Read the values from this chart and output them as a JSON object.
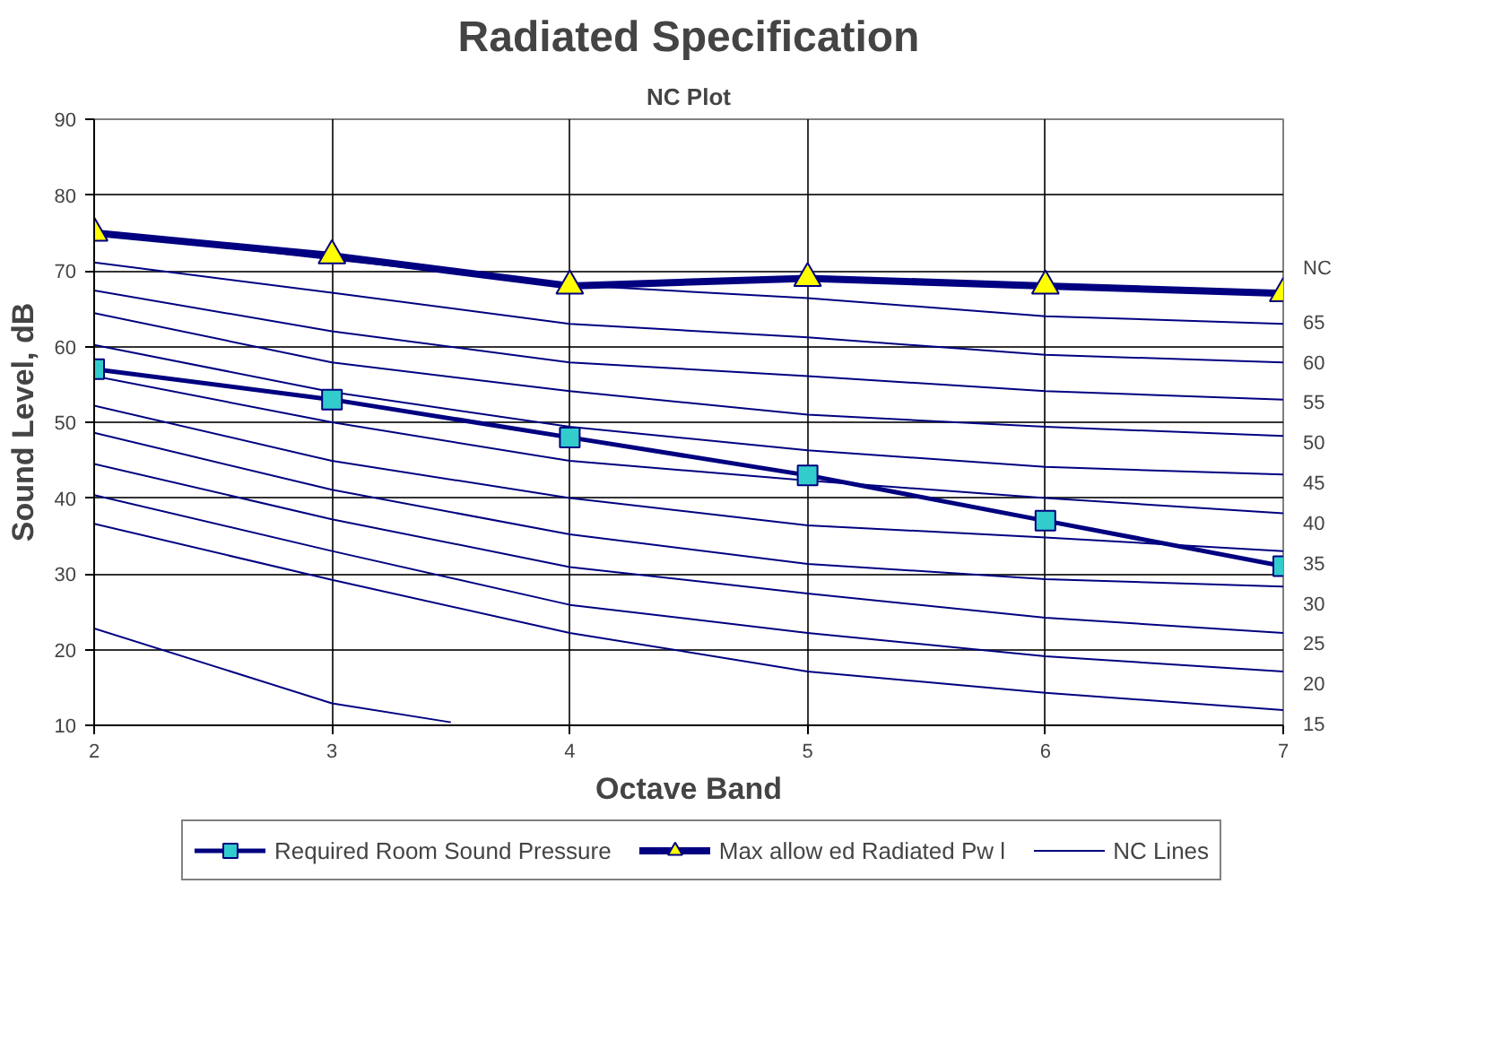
{
  "chart_data": {
    "type": "line",
    "title": "Radiated Specification",
    "subtitle": "NC Plot",
    "xlabel": "Octave Band",
    "ylabel": "Sound Level, dB",
    "y2label": "NC",
    "x": [
      2,
      3,
      4,
      5,
      6,
      7
    ],
    "xlim": [
      2,
      7
    ],
    "xticks": [
      2,
      3,
      4,
      5,
      6,
      7
    ],
    "ylim": [
      10,
      90
    ],
    "yticks": [
      10,
      20,
      30,
      40,
      50,
      60,
      70,
      80,
      90
    ],
    "y2lim": [
      15,
      90.4
    ],
    "y2ticks": [
      15,
      20,
      25,
      30,
      35,
      40,
      45,
      50,
      55,
      60,
      65
    ],
    "grid": true,
    "legend": "bottom",
    "line_style": "solid",
    "series": [
      {
        "name": "NC Lines",
        "color": "#000080",
        "marker": "none",
        "values": [
          75.0,
          71.5,
          68.1,
          66.4,
          64.0,
          63.0
        ]
      },
      {
        "color": "#000080",
        "marker": "none",
        "values": [
          71.1,
          67.1,
          63.0,
          61.2,
          58.9,
          57.9
        ]
      },
      {
        "color": "#000080",
        "marker": "none",
        "values": [
          67.4,
          62.0,
          57.9,
          56.1,
          54.1,
          53.0
        ]
      },
      {
        "color": "#000080",
        "marker": "none",
        "values": [
          64.4,
          57.9,
          54.1,
          51.0,
          49.4,
          48.2
        ]
      },
      {
        "color": "#000080",
        "marker": "none",
        "values": [
          60.2,
          54.0,
          49.4,
          46.3,
          44.1,
          43.1
        ]
      },
      {
        "color": "#000080",
        "marker": "none",
        "values": [
          56.1,
          50.0,
          44.9,
          42.3,
          40.0,
          38.0
        ]
      },
      {
        "color": "#000080",
        "marker": "none",
        "values": [
          52.2,
          44.9,
          40.0,
          36.4,
          34.8,
          33.0
        ]
      },
      {
        "color": "#000080",
        "marker": "none",
        "values": [
          48.6,
          41.1,
          35.2,
          31.3,
          29.3,
          28.3
        ]
      },
      {
        "color": "#000080",
        "marker": "none",
        "values": [
          44.5,
          37.2,
          30.9,
          27.4,
          24.2,
          22.2
        ]
      },
      {
        "color": "#000080",
        "marker": "none",
        "values": [
          40.4,
          33.0,
          25.9,
          22.2,
          19.1,
          17.1
        ]
      },
      {
        "color": "#000080",
        "marker": "none",
        "values": [
          36.6,
          29.2,
          22.2,
          17.1,
          14.3,
          12.0
        ]
      },
      {
        "color": "#000080",
        "marker": "none",
        "x": [
          2,
          3,
          3.5
        ],
        "values": [
          22.8,
          12.9,
          10.4
        ]
      },
      {
        "name": "Required Room Sound Pressure",
        "color": "#000080",
        "marker": "square",
        "colors": [
          "#33cccc",
          "#33cccc",
          "#33cccc",
          "#33cccc",
          "#33cccc",
          "#33cccc"
        ],
        "values": [
          57,
          53,
          48,
          43,
          37,
          31
        ]
      },
      {
        "name": "Max allow ed Radiated Pw l",
        "color": "#000080",
        "marker": "triangle",
        "colors": [
          "#ffff00",
          "#ffff00",
          "#ffff00",
          "#ffff00",
          "#ffff00",
          "#ffff00"
        ],
        "values": [
          75,
          72,
          68,
          69,
          68,
          67
        ]
      }
    ]
  }
}
